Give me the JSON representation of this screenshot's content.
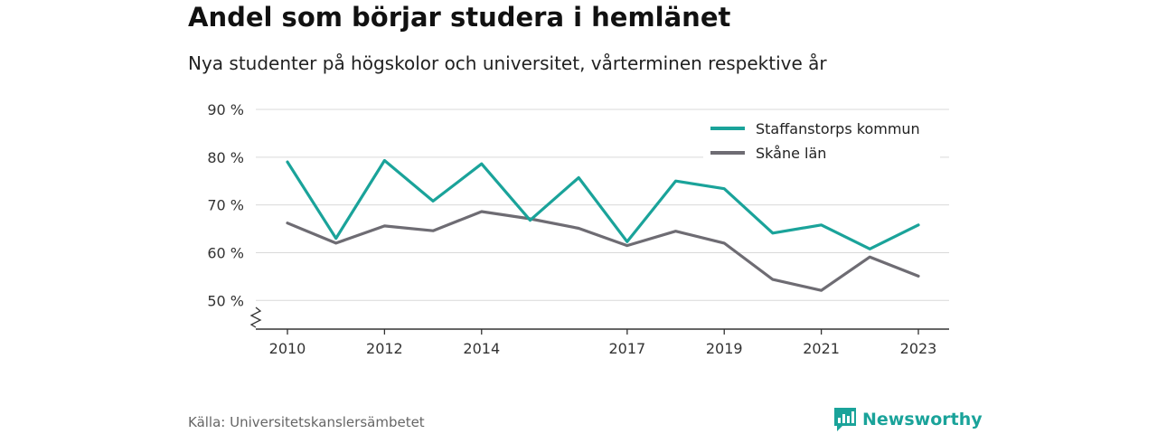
{
  "header": {
    "title": "Andel som börjar studera i hemlänet",
    "subtitle": "Nya studenter på högskolor och universitet, vårterminen respektive år"
  },
  "footer": {
    "source": "Källa: Universitetskanslersämbetet",
    "brand": "Newsworthy",
    "brand_icon": "bar-chart-logo-icon"
  },
  "colors": {
    "staffanstorp": "#1aa39a",
    "skane": "#6e6c73",
    "grid": "#d9d9d9",
    "axis": "#333333",
    "brand": "#1aa39a"
  },
  "chart_data": {
    "type": "line",
    "x": [
      2010,
      2011,
      2012,
      2013,
      2014,
      2015,
      2016,
      2017,
      2018,
      2019,
      2020,
      2021,
      2022,
      2023
    ],
    "xticks": [
      2010,
      2012,
      2014,
      2017,
      2019,
      2021,
      2023
    ],
    "yticks": [
      50,
      60,
      70,
      80,
      90
    ],
    "ytick_labels": [
      "50 %",
      "60 %",
      "70 %",
      "80 %",
      "90 %"
    ],
    "ylim": [
      44,
      90
    ],
    "axis_break": true,
    "grid": true,
    "legend_position": "top-right",
    "series": [
      {
        "name": "Staffanstorps kommun",
        "color": "#1aa39a",
        "values": [
          79,
          63,
          79.3,
          70.8,
          78.6,
          66.8,
          75.7,
          62.3,
          75,
          73.4,
          64.1,
          65.8,
          60.8,
          65.8
        ]
      },
      {
        "name": "Skåne län",
        "color": "#6e6c73",
        "values": [
          66.2,
          62,
          65.6,
          64.6,
          68.6,
          67.1,
          65.1,
          61.5,
          64.5,
          62,
          54.4,
          52.1,
          59.1,
          55.1
        ]
      }
    ]
  }
}
